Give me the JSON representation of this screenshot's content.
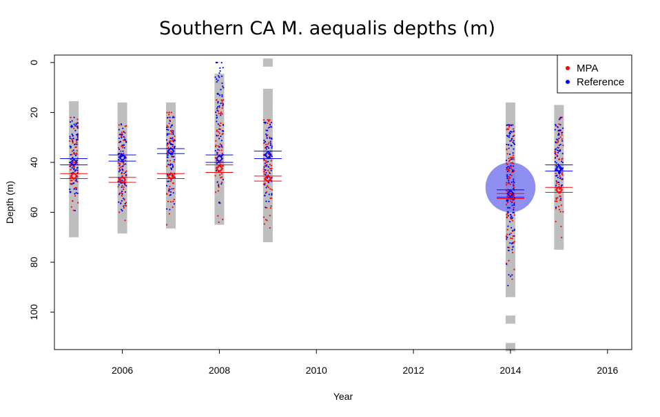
{
  "chart_data": {
    "type": "scatter",
    "title": "Southern CA M. aequalis  depths (m)",
    "xlabel": "Year",
    "ylabel": "Depth (m)",
    "xlim": [
      2004.6,
      2016.5
    ],
    "ylim": [
      115,
      -3
    ],
    "y_reversed": true,
    "x_ticks": [
      2006,
      2008,
      2010,
      2012,
      2014,
      2016
    ],
    "y_ticks": [
      0,
      20,
      40,
      60,
      80,
      100
    ],
    "grid": false,
    "legend": {
      "position": "top-right",
      "entries": [
        {
          "label": "MPA",
          "color": "#ff0000"
        },
        {
          "label": "Reference",
          "color": "#0000ff"
        }
      ]
    },
    "colors": {
      "range_bar": "#bebebe",
      "mpa": "#ff0000",
      "reference": "#0000ff",
      "bubble": "#7b7bf0"
    },
    "survey_years": [
      2005,
      2006,
      2007,
      2008,
      2009,
      2014,
      2015
    ],
    "depth_ranges": [
      {
        "year": 2005,
        "min": 15.5,
        "max": 70
      },
      {
        "year": 2006,
        "min": 16,
        "max": 68.5
      },
      {
        "year": 2007,
        "min": 16,
        "max": 66.5
      },
      {
        "year": 2008,
        "min": 4.5,
        "max": 65
      },
      {
        "year": 2009,
        "min": 10.5,
        "max": 72
      },
      {
        "year": 2014,
        "min": 16,
        "max": 94
      },
      {
        "year": 2015,
        "min": 17,
        "max": 75
      }
    ],
    "extra_range_marks": [
      {
        "year": 2008,
        "depth": 11
      },
      {
        "year": 2009,
        "depth": 0
      },
      {
        "year": 2014,
        "depth": 103
      },
      {
        "year": 2014,
        "depth": 114
      }
    ],
    "series": [
      {
        "name": "MPA",
        "means": [
          {
            "year": 2005,
            "mean": 45.5,
            "lower": 44.5,
            "upper": 46.5
          },
          {
            "year": 2006,
            "mean": 47,
            "lower": 46,
            "upper": 48
          },
          {
            "year": 2007,
            "mean": 45.5,
            "lower": 44.5,
            "upper": 46.5
          },
          {
            "year": 2008,
            "mean": 42.5,
            "lower": 41,
            "upper": 44
          },
          {
            "year": 2009,
            "mean": 46.5,
            "lower": 45.5,
            "upper": 47.5
          },
          {
            "year": 2014,
            "mean": 53.5,
            "lower": 52.5,
            "upper": 54.5
          },
          {
            "year": 2015,
            "mean": 51,
            "lower": 50,
            "upper": 52
          }
        ],
        "points": {
          "2005": [
            22,
            68
          ],
          "2006": [
            25,
            66
          ],
          "2007": [
            20,
            65
          ],
          "2008": [
            15,
            64
          ],
          "2009": [
            23,
            68
          ],
          "2014": [
            25,
            90
          ],
          "2015": [
            22,
            74
          ]
        }
      },
      {
        "name": "Reference",
        "means": [
          {
            "year": 2005,
            "mean": 40,
            "lower": 38.5,
            "upper": 41
          },
          {
            "year": 2006,
            "mean": 38,
            "lower": 37,
            "upper": 39.5
          },
          {
            "year": 2007,
            "mean": 35.5,
            "lower": 34.5,
            "upper": 36.5
          },
          {
            "year": 2008,
            "mean": 38.5,
            "lower": 37,
            "upper": 40
          },
          {
            "year": 2009,
            "mean": 37,
            "lower": 35.5,
            "upper": 38.5
          },
          {
            "year": 2014,
            "mean": 52.5,
            "lower": 51,
            "upper": 54
          },
          {
            "year": 2015,
            "mean": 42.5,
            "lower": 41,
            "upper": 43.5
          }
        ],
        "points": {
          "2005": [
            22,
            60
          ],
          "2006": [
            24,
            62
          ],
          "2007": [
            22,
            60
          ],
          "2008": [
            0,
            61
          ],
          "2009": [
            24,
            60
          ],
          "2014": [
            25,
            92
          ],
          "2015": [
            22,
            58
          ]
        }
      }
    ],
    "bubble": {
      "year": 2014,
      "depth": 50,
      "radius_depth": 10
    }
  }
}
